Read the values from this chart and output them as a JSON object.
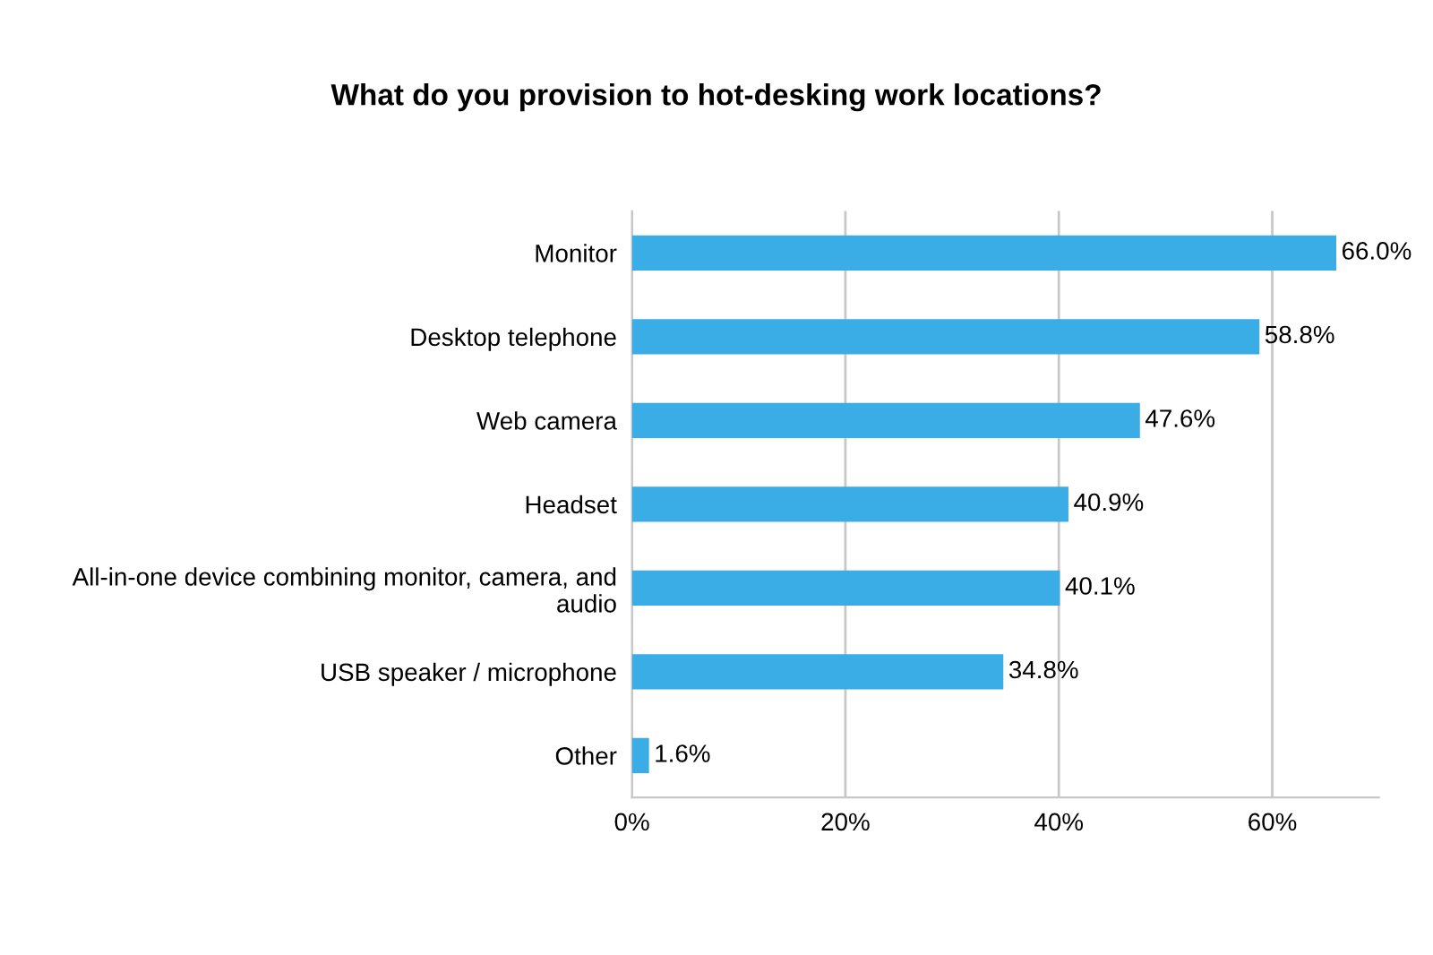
{
  "chart_data": {
    "type": "bar",
    "orientation": "horizontal",
    "title": "What do you provision to hot-desking work locations?",
    "categories": [
      "Monitor",
      "Desktop telephone",
      "Web camera",
      "Headset",
      "All-in-one device combining monitor, camera, and\naudio",
      "USB speaker / microphone",
      "Other"
    ],
    "values": [
      66.0,
      58.8,
      47.6,
      40.9,
      40.1,
      34.8,
      1.6
    ],
    "value_labels": [
      "66.0%",
      "58.8%",
      "47.6%",
      "40.9%",
      "40.1%",
      "34.8%",
      "1.6%"
    ],
    "color": "#3aace6",
    "xlim": [
      0,
      70
    ],
    "xticks": [
      {
        "value": 0,
        "label": "0%"
      },
      {
        "value": 20,
        "label": "20%"
      },
      {
        "value": 40,
        "label": "40%"
      },
      {
        "value": 60,
        "label": "60%"
      }
    ],
    "grid": "x",
    "legend": false
  }
}
